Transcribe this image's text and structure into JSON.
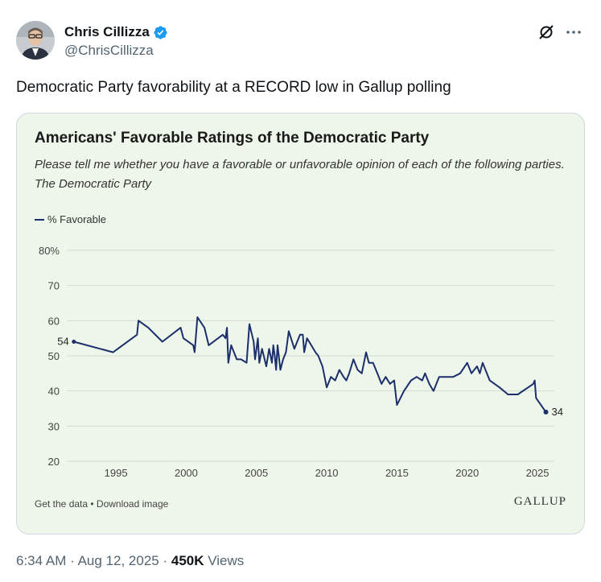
{
  "post": {
    "author_name": "Chris Cillizza",
    "handle": "@ChrisCillizza",
    "text": "Democratic Party favorability at a RECORD low in Gallup polling",
    "time": "6:34 AM",
    "date": "Aug 12, 2025",
    "views_count": "450K",
    "views_label": "Views",
    "separator": "·"
  },
  "icons": {
    "verified": "verified-badge-icon",
    "grok": "grok-icon",
    "more": "more-horizontal-icon"
  },
  "colors": {
    "verified": "#1d9bf0",
    "line": "#1b2f6b",
    "media_background": "#eef5ea"
  },
  "media": {
    "footer_links": "Get the data • Download image",
    "logo_text": "GALLUP"
  },
  "chart_data": {
    "type": "line",
    "title": "Americans' Favorable Ratings of the Democratic Party",
    "subtitle": "Please tell me whether you have a favorable or unfavorable opinion of each of the following parties. The Democratic Party",
    "legend": {
      "label": "% Favorable",
      "placement": "top-left"
    },
    "xlabel": "",
    "ylabel": "",
    "xlim": [
      1991.5,
      2026.2
    ],
    "ylim": [
      20,
      80
    ],
    "x_ticks": [
      1995,
      2000,
      2005,
      2010,
      2015,
      2020,
      2025
    ],
    "y_ticks": [
      20,
      30,
      40,
      50,
      60,
      70,
      80
    ],
    "y_tick_labels": [
      "20",
      "30",
      "40",
      "50",
      "60",
      "70",
      "80%"
    ],
    "grid": "horizontal",
    "series": [
      {
        "name": "% Favorable",
        "x": [
          1992.0,
          1994.8,
          1996.5,
          1996.6,
          1997.3,
          1998.3,
          1999.6,
          1999.8,
          2000.5,
          2000.6,
          2000.8,
          2001.3,
          2001.6,
          2002.6,
          2002.8,
          2002.9,
          2003.0,
          2003.2,
          2003.6,
          2003.9,
          2004.3,
          2004.5,
          2004.8,
          2004.9,
          2005.1,
          2005.2,
          2005.4,
          2005.7,
          2005.9,
          2006.1,
          2006.2,
          2006.3,
          2006.4,
          2006.5,
          2006.7,
          2006.9,
          2007.1,
          2007.3,
          2007.7,
          2008.1,
          2008.3,
          2008.4,
          2008.6,
          2008.9,
          2009.2,
          2009.4,
          2009.7,
          2010.0,
          2010.3,
          2010.6,
          2010.9,
          2011.2,
          2011.4,
          2011.6,
          2011.9,
          2012.2,
          2012.5,
          2012.8,
          2013.0,
          2013.3,
          2013.6,
          2013.9,
          2014.2,
          2014.5,
          2014.8,
          2015.0,
          2015.5,
          2016.0,
          2016.4,
          2016.8,
          2017.0,
          2017.3,
          2017.6,
          2018.0,
          2019.0,
          2019.5,
          2020.0,
          2020.3,
          2020.7,
          2020.9,
          2021.1,
          2021.6,
          2022.3,
          2022.9,
          2023.6,
          2024.7,
          2024.8,
          2024.9,
          2025.6
        ],
        "values": [
          54,
          51,
          56,
          60,
          58,
          54,
          58,
          55,
          53,
          51,
          61,
          58,
          53,
          56,
          55,
          58,
          48,
          53,
          49,
          49,
          48,
          59,
          54,
          49,
          55,
          48,
          52,
          47,
          52,
          48,
          53,
          50,
          46,
          53,
          46,
          49,
          51,
          57,
          52,
          56,
          56,
          51,
          55,
          53,
          51,
          50,
          47,
          41,
          44,
          43,
          46,
          44,
          43,
          45,
          49,
          46,
          45,
          51,
          48,
          48,
          45,
          42,
          44,
          42,
          43,
          36,
          40,
          43,
          44,
          43,
          45,
          42,
          40,
          44,
          44,
          45,
          48,
          45,
          47,
          45,
          48,
          43,
          41,
          39,
          39,
          42,
          43,
          38,
          34
        ],
        "start_label": "54",
        "end_label": "34"
      }
    ]
  }
}
